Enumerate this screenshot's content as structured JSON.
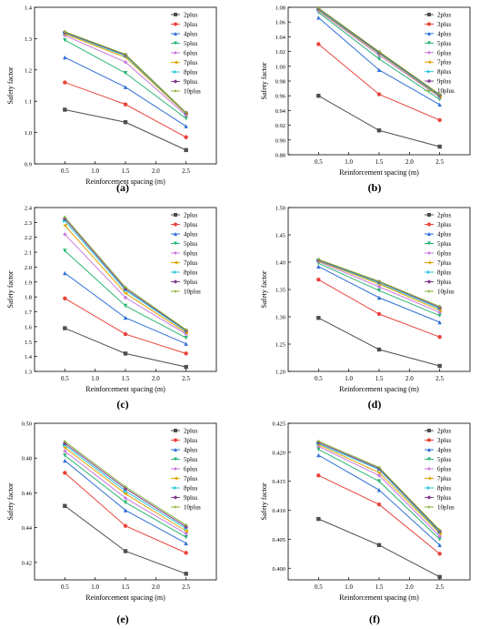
{
  "figure": {
    "series_colors": [
      "#4d4d4d",
      "#e8433a",
      "#2f6fd6",
      "#2bb673",
      "#c77be0",
      "#e3a300",
      "#28c4d9",
      "#7f3c8d",
      "#8ab33b"
    ],
    "marker_shapes": [
      "square",
      "circle",
      "triangle-up",
      "triangle-down",
      "diamond",
      "triangle-left",
      "triangle-right",
      "hexagon",
      "star"
    ]
  },
  "chart_data": [
    {
      "type": "line",
      "label": "(a)",
      "xlabel": "Reinforcement spacing (m)",
      "ylabel": "Safety factor",
      "x": [
        0.5,
        1.5,
        2.5
      ],
      "xlim": [
        0.0,
        3.0
      ],
      "ylim": [
        0.9,
        1.4
      ],
      "xticks": [
        "0.5",
        "1.0",
        "1.5",
        "2.0",
        "2.5"
      ],
      "yticks": [
        "0.9",
        "1.0",
        "1.1",
        "1.2",
        "1.3",
        "1.4"
      ],
      "legend_position": "top-right",
      "grid": false,
      "series": [
        {
          "name": "2plus",
          "values": [
            1.073,
            1.033,
            0.944
          ]
        },
        {
          "name": "3plus",
          "values": [
            1.16,
            1.09,
            0.985
          ]
        },
        {
          "name": "4plus",
          "values": [
            1.24,
            1.145,
            1.02
          ]
        },
        {
          "name": "5plus",
          "values": [
            1.295,
            1.19,
            1.045
          ]
        },
        {
          "name": "6plus",
          "values": [
            1.31,
            1.225,
            1.055
          ]
        },
        {
          "name": "7plus",
          "values": [
            1.315,
            1.24,
            1.06
          ]
        },
        {
          "name": "8plus",
          "values": [
            1.318,
            1.245,
            1.062
          ]
        },
        {
          "name": "9plus",
          "values": [
            1.32,
            1.248,
            1.063
          ]
        },
        {
          "name": "10plus",
          "values": [
            1.322,
            1.25,
            1.064
          ]
        }
      ]
    },
    {
      "type": "line",
      "label": "(b)",
      "xlabel": "Reinforcement spacing (m)",
      "ylabel": "Safety factor",
      "x": [
        0.5,
        1.5,
        2.5
      ],
      "xlim": [
        0.0,
        3.0
      ],
      "ylim": [
        0.88,
        1.08
      ],
      "xticks": [
        "0.5",
        "1.0",
        "1.5",
        "2.0",
        "2.5"
      ],
      "yticks": [
        "0.88",
        "0.90",
        "0.92",
        "0.94",
        "0.96",
        "0.98",
        "1.00",
        "1.02",
        "1.04",
        "1.06",
        "1.08"
      ],
      "legend_position": "top-right",
      "grid": false,
      "series": [
        {
          "name": "2plus",
          "values": [
            0.96,
            0.913,
            0.891
          ]
        },
        {
          "name": "3plus",
          "values": [
            1.03,
            0.962,
            0.927
          ]
        },
        {
          "name": "4plus",
          "values": [
            1.066,
            0.995,
            0.948
          ]
        },
        {
          "name": "5plus",
          "values": [
            1.073,
            1.01,
            0.955
          ]
        },
        {
          "name": "6plus",
          "values": [
            1.075,
            1.015,
            0.958
          ]
        },
        {
          "name": "7plus",
          "values": [
            1.076,
            1.017,
            0.959
          ]
        },
        {
          "name": "8plus",
          "values": [
            1.077,
            1.018,
            0.96
          ]
        },
        {
          "name": "9plus",
          "values": [
            1.078,
            1.019,
            0.961
          ]
        },
        {
          "name": "10plus",
          "values": [
            1.079,
            1.02,
            0.962
          ]
        }
      ]
    },
    {
      "type": "line",
      "label": "(c)",
      "xlabel": "Reinforcement spacing (m)",
      "ylabel": "Safety factor",
      "x": [
        0.5,
        1.5,
        2.5
      ],
      "xlim": [
        0.0,
        3.0
      ],
      "ylim": [
        1.3,
        2.4
      ],
      "xticks": [
        "0.5",
        "1.0",
        "1.5",
        "2.0",
        "2.5"
      ],
      "yticks": [
        "1.3",
        "1.4",
        "1.5",
        "1.6",
        "1.7",
        "1.8",
        "1.9",
        "2.0",
        "2.1",
        "2.2",
        "2.3",
        "2.4"
      ],
      "legend_position": "top-right",
      "grid": false,
      "series": [
        {
          "name": "2plus",
          "values": [
            1.59,
            1.42,
            1.33
          ]
        },
        {
          "name": "3plus",
          "values": [
            1.79,
            1.55,
            1.42
          ]
        },
        {
          "name": "4plus",
          "values": [
            1.96,
            1.66,
            1.485
          ]
        },
        {
          "name": "5plus",
          "values": [
            2.11,
            1.74,
            1.525
          ]
        },
        {
          "name": "6plus",
          "values": [
            2.22,
            1.795,
            1.55
          ]
        },
        {
          "name": "7plus",
          "values": [
            2.28,
            1.825,
            1.56
          ]
        },
        {
          "name": "8plus",
          "values": [
            2.31,
            1.845,
            1.57
          ]
        },
        {
          "name": "9plus",
          "values": [
            2.325,
            1.855,
            1.575
          ]
        },
        {
          "name": "10plus",
          "values": [
            2.335,
            1.865,
            1.58
          ]
        }
      ]
    },
    {
      "type": "line",
      "label": "(d)",
      "xlabel": "Reinforcement spacing (m)",
      "ylabel": "Safety factor",
      "x": [
        0.5,
        1.5,
        2.5
      ],
      "xlim": [
        0.0,
        3.0
      ],
      "ylim": [
        1.2,
        1.5
      ],
      "xticks": [
        "0.5",
        "1.0",
        "1.5",
        "2.0",
        "2.5"
      ],
      "yticks": [
        "1.20",
        "1.25",
        "1.30",
        "1.35",
        "1.40",
        "1.45",
        "1.50"
      ],
      "legend_position": "top-right",
      "grid": false,
      "series": [
        {
          "name": "2plus",
          "values": [
            1.298,
            1.24,
            1.21
          ]
        },
        {
          "name": "3plus",
          "values": [
            1.368,
            1.305,
            1.263
          ]
        },
        {
          "name": "4plus",
          "values": [
            1.392,
            1.335,
            1.29
          ]
        },
        {
          "name": "5plus",
          "values": [
            1.398,
            1.348,
            1.302
          ]
        },
        {
          "name": "6plus",
          "values": [
            1.401,
            1.355,
            1.308
          ]
        },
        {
          "name": "7plus",
          "values": [
            1.402,
            1.36,
            1.312
          ]
        },
        {
          "name": "8plus",
          "values": [
            1.403,
            1.362,
            1.315
          ]
        },
        {
          "name": "9plus",
          "values": [
            1.404,
            1.364,
            1.317
          ]
        },
        {
          "name": "10plus",
          "values": [
            1.405,
            1.365,
            1.319
          ]
        }
      ]
    },
    {
      "type": "line",
      "label": "(e)",
      "xlabel": "Reinforcement spacing (m)",
      "ylabel": "Safety factor",
      "x": [
        0.5,
        1.5,
        2.5
      ],
      "xlim": [
        0.0,
        3.0
      ],
      "ylim": [
        0.41,
        0.5
      ],
      "xticks": [
        "0.5",
        "1.0",
        "1.5",
        "2.0",
        "2.5"
      ],
      "yticks": [
        "0.42",
        "0.44",
        "0.46",
        "0.48",
        "0.50"
      ],
      "legend_position": "top-right",
      "grid": false,
      "series": [
        {
          "name": "2plus",
          "values": [
            0.4525,
            0.4265,
            0.4135
          ]
        },
        {
          "name": "3plus",
          "values": [
            0.4715,
            0.441,
            0.4255
          ]
        },
        {
          "name": "4plus",
          "values": [
            0.4785,
            0.45,
            0.431
          ]
        },
        {
          "name": "5plus",
          "values": [
            0.4815,
            0.4545,
            0.4345
          ]
        },
        {
          "name": "6plus",
          "values": [
            0.484,
            0.457,
            0.4365
          ]
        },
        {
          "name": "7plus",
          "values": [
            0.486,
            0.4595,
            0.438
          ]
        },
        {
          "name": "8plus",
          "values": [
            0.4875,
            0.461,
            0.4395
          ]
        },
        {
          "name": "9plus",
          "values": [
            0.4885,
            0.4625,
            0.4405
          ]
        },
        {
          "name": "10plus",
          "values": [
            0.4895,
            0.4635,
            0.4415
          ]
        }
      ]
    },
    {
      "type": "line",
      "label": "(f)",
      "xlabel": "Reinforcement spacing (m)",
      "ylabel": "Safety factor",
      "x": [
        0.5,
        1.5,
        2.5
      ],
      "xlim": [
        0.0,
        3.0
      ],
      "ylim": [
        0.398,
        0.425
      ],
      "xticks": [
        "0.5",
        "1.0",
        "1.5",
        "2.0",
        "2.5"
      ],
      "yticks": [
        "0.400",
        "0.405",
        "0.410",
        "0.415",
        "0.420",
        "0.425"
      ],
      "legend_position": "top-right",
      "grid": false,
      "series": [
        {
          "name": "2plus",
          "values": [
            0.4085,
            0.404,
            0.3985
          ]
        },
        {
          "name": "3plus",
          "values": [
            0.416,
            0.411,
            0.4025
          ]
        },
        {
          "name": "4plus",
          "values": [
            0.4195,
            0.4135,
            0.404
          ]
        },
        {
          "name": "5plus",
          "values": [
            0.4205,
            0.415,
            0.405
          ]
        },
        {
          "name": "6plus",
          "values": [
            0.421,
            0.416,
            0.4055
          ]
        },
        {
          "name": "7plus",
          "values": [
            0.4213,
            0.4165,
            0.406
          ]
        },
        {
          "name": "8plus",
          "values": [
            0.4215,
            0.417,
            0.4062
          ]
        },
        {
          "name": "9plus",
          "values": [
            0.4217,
            0.4172,
            0.4064
          ]
        },
        {
          "name": "10plus",
          "values": [
            0.4219,
            0.4174,
            0.4066
          ]
        }
      ]
    }
  ]
}
